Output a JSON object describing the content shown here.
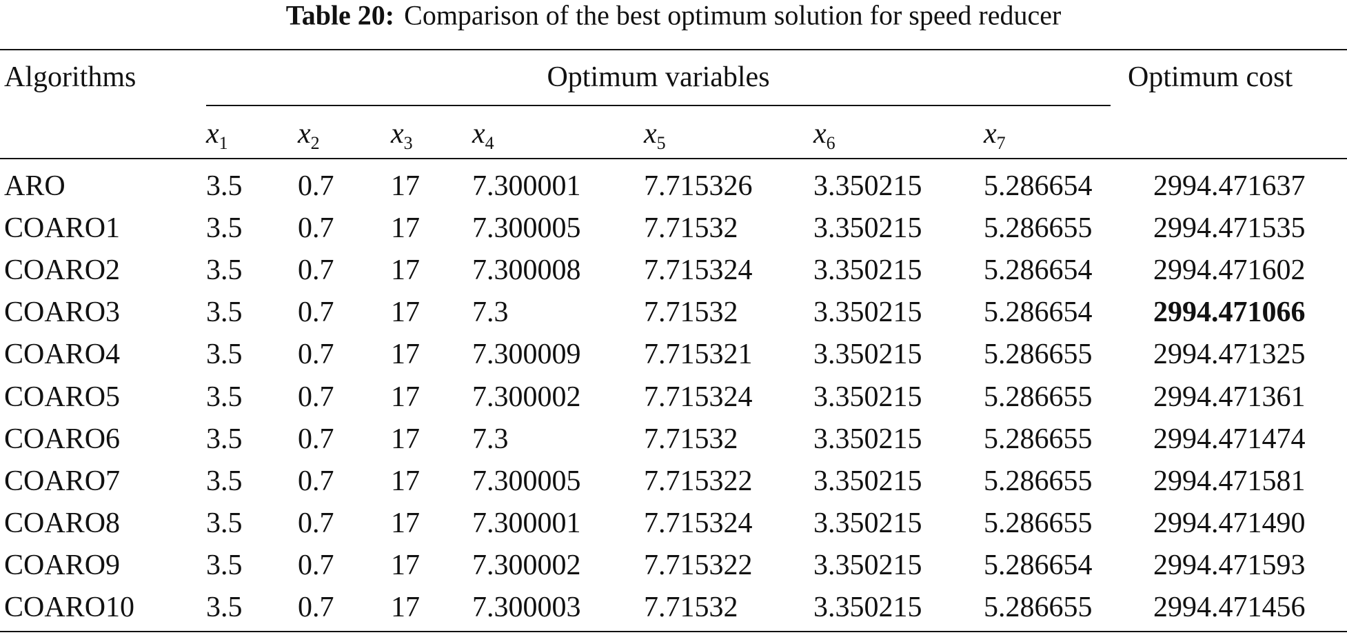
{
  "title": {
    "label": "Table 20:",
    "text": "Comparison of the best optimum solution for speed reducer"
  },
  "table": {
    "header": {
      "algorithms": "Algorithms",
      "variables": "Optimum variables",
      "cost": "Optimum cost"
    },
    "variables": [
      {
        "symbol": "x",
        "index": "1"
      },
      {
        "symbol": "x",
        "index": "2"
      },
      {
        "symbol": "x",
        "index": "3"
      },
      {
        "symbol": "x",
        "index": "4"
      },
      {
        "symbol": "x",
        "index": "5"
      },
      {
        "symbol": "x",
        "index": "6"
      },
      {
        "symbol": "x",
        "index": "7"
      }
    ],
    "rows": [
      [
        "ARO",
        "3.5",
        "0.7",
        "17",
        "7.300001",
        "7.715326",
        "3.350215",
        "5.286654",
        "2994.471637"
      ],
      [
        "COARO1",
        "3.5",
        "0.7",
        "17",
        "7.300005",
        "7.71532",
        "3.350215",
        "5.286655",
        "2994.471535"
      ],
      [
        "COARO2",
        "3.5",
        "0.7",
        "17",
        "7.300008",
        "7.715324",
        "3.350215",
        "5.286654",
        "2994.471602"
      ],
      [
        "COARO3",
        "3.5",
        "0.7",
        "17",
        "7.3",
        "7.71532",
        "3.350215",
        "5.286654",
        "2994.471066"
      ],
      [
        "COARO4",
        "3.5",
        "0.7",
        "17",
        "7.300009",
        "7.715321",
        "3.350215",
        "5.286655",
        "2994.471325"
      ],
      [
        "COARO5",
        "3.5",
        "0.7",
        "17",
        "7.300002",
        "7.715324",
        "3.350215",
        "5.286655",
        "2994.471361"
      ],
      [
        "COARO6",
        "3.5",
        "0.7",
        "17",
        "7.3",
        "7.71532",
        "3.350215",
        "5.286655",
        "2994.471474"
      ],
      [
        "COARO7",
        "3.5",
        "0.7",
        "17",
        "7.300005",
        "7.715322",
        "3.350215",
        "5.286655",
        "2994.471581"
      ],
      [
        "COARO8",
        "3.5",
        "0.7",
        "17",
        "7.300001",
        "7.715324",
        "3.350215",
        "5.286655",
        "2994.471490"
      ],
      [
        "COARO9",
        "3.5",
        "0.7",
        "17",
        "7.300002",
        "7.715322",
        "3.350215",
        "5.286654",
        "2994.471593"
      ],
      [
        "COARO10",
        "3.5",
        "0.7",
        "17",
        "7.300003",
        "7.71532",
        "3.350215",
        "5.286655",
        "2994.471456"
      ]
    ]
  }
}
